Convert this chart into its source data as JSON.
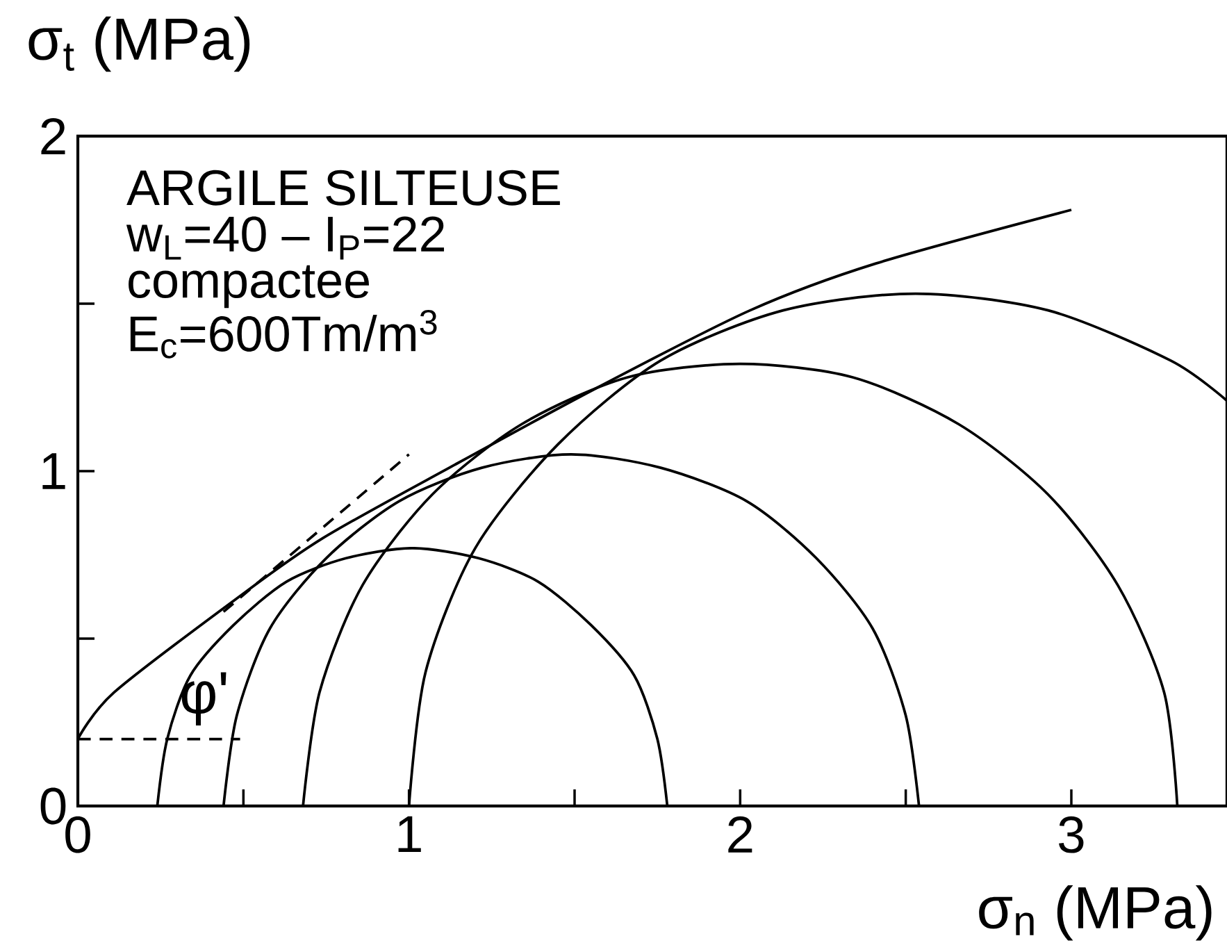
{
  "chart_data": {
    "type": "line",
    "xlabel": "σ$_{n}$  (MPa)",
    "ylabel": "σ$_{t}$  (MPa)",
    "annotations": [
      "ARGILE SILTEUSE",
      "w$_{L}$=40  –  I$_{P}$=22",
      "compactee",
      "E$_{c}$=600Tm/m$^{3}$",
      "φ'"
    ],
    "xlim": [
      0,
      3.47
    ],
    "ylim": [
      0,
      2
    ],
    "xticks": [
      0,
      {
        "value": 0.5,
        "label": null
      },
      1,
      {
        "value": 1.5,
        "label": null
      },
      2,
      {
        "value": 2.5,
        "label": null
      },
      3
    ],
    "yticks": [
      0,
      {
        "value": 0.5,
        "label": null
      },
      1,
      {
        "value": 1.5,
        "label": null
      },
      2
    ],
    "grid": false,
    "legend": false,
    "marker": "none",
    "series": [
      {
        "color": "#000000",
        "x": [
          0.24,
          0.27,
          0.34,
          0.47,
          0.63,
          0.81,
          1.01,
          1.21,
          1.39,
          1.55,
          1.68,
          1.75,
          1.78
        ],
        "values": [
          0,
          0.2,
          0.39,
          0.54,
          0.67,
          0.74,
          0.77,
          0.74,
          0.67,
          0.54,
          0.39,
          0.2,
          0
        ]
      },
      {
        "color": "#000000",
        "x": [
          0.44,
          0.48,
          0.58,
          0.75,
          0.97,
          1.22,
          1.49,
          1.76,
          2.02,
          2.23,
          2.4,
          2.5,
          2.54
        ],
        "values": [
          0,
          0.27,
          0.53,
          0.74,
          0.91,
          1.01,
          1.05,
          1.01,
          0.91,
          0.74,
          0.53,
          0.27,
          0
        ]
      },
      {
        "color": "#000000",
        "x": [
          0.68,
          0.73,
          0.86,
          1.07,
          1.34,
          1.66,
          2.0,
          2.34,
          2.66,
          2.93,
          3.14,
          3.28,
          3.32
        ],
        "values": [
          0,
          0.34,
          0.66,
          0.93,
          1.14,
          1.28,
          1.32,
          1.28,
          1.14,
          0.93,
          0.66,
          0.34,
          0
        ]
      },
      {
        "color": "#000000",
        "x": [
          1.0,
          1.05,
          1.2,
          1.45,
          1.76,
          2.13,
          2.53,
          2.93,
          3.3,
          3.47
        ],
        "values": [
          0,
          0.4,
          0.77,
          1.08,
          1.33,
          1.48,
          1.53,
          1.48,
          1.33,
          1.21
        ]
      },
      {
        "color": "#000000",
        "x": [
          0,
          0.11,
          0.48,
          0.74,
          1.14,
          1.57,
          2.03,
          2.41,
          3.0
        ],
        "values": [
          0.2,
          0.34,
          0.62,
          0.8,
          1.02,
          1.25,
          1.48,
          1.62,
          1.78
        ]
      },
      {
        "color": "#000000",
        "line_style": "dashed",
        "x": [
          0.44,
          1.0
        ],
        "values": [
          0.58,
          1.05
        ]
      },
      {
        "color": "#000000",
        "line_style": "dashed",
        "x": [
          0,
          0.49
        ],
        "values": [
          0.2,
          0.2
        ]
      }
    ]
  }
}
